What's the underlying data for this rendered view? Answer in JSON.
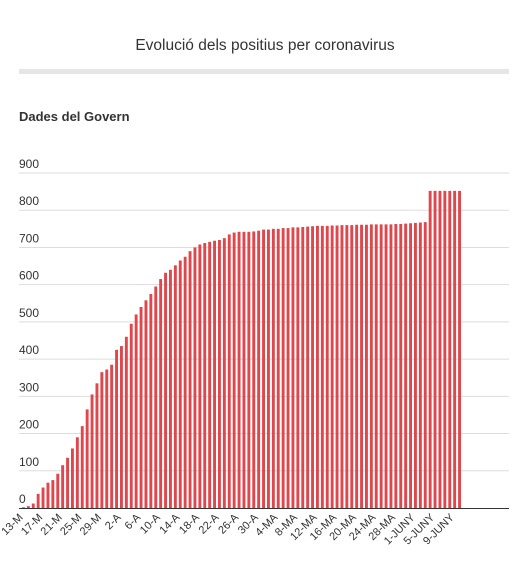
{
  "title": "Evolució dels positius per coronavirus",
  "subtitle": "Dades del Govern",
  "colors": {
    "bar": "#e0474c",
    "grid": "#dddddd",
    "axis": "#333333"
  },
  "chart_data": {
    "type": "bar",
    "title": "Evolució dels positius per coronavirus",
    "subtitle": "Dades del Govern",
    "xlabel": "",
    "ylabel": "",
    "ylim": [
      0,
      900
    ],
    "yticks": [
      0,
      100,
      200,
      300,
      400,
      500,
      600,
      700,
      800,
      900
    ],
    "grid": true,
    "legend": "none",
    "xtick_labels": [
      {
        "index": 0,
        "label": "13-M"
      },
      {
        "index": 4,
        "label": "17-M"
      },
      {
        "index": 8,
        "label": "21-M"
      },
      {
        "index": 12,
        "label": "25-M"
      },
      {
        "index": 16,
        "label": "29-M"
      },
      {
        "index": 20,
        "label": "2-A"
      },
      {
        "index": 24,
        "label": "6-A"
      },
      {
        "index": 28,
        "label": "10-A"
      },
      {
        "index": 32,
        "label": "14-A"
      },
      {
        "index": 36,
        "label": "18-A"
      },
      {
        "index": 40,
        "label": "22-A"
      },
      {
        "index": 44,
        "label": "26-A"
      },
      {
        "index": 48,
        "label": "30-A"
      },
      {
        "index": 52,
        "label": "4-MA"
      },
      {
        "index": 56,
        "label": "8-MA"
      },
      {
        "index": 60,
        "label": "12-MA"
      },
      {
        "index": 64,
        "label": "16-MA"
      },
      {
        "index": 68,
        "label": "20-MA"
      },
      {
        "index": 72,
        "label": "24-MA"
      },
      {
        "index": 76,
        "label": "28-MA"
      },
      {
        "index": 80,
        "label": "1-JUNY"
      },
      {
        "index": 84,
        "label": "5-JUNY"
      },
      {
        "index": 88,
        "label": "9-JUNY"
      }
    ],
    "values": [
      2,
      5,
      12,
      38,
      55,
      68,
      75,
      92,
      115,
      135,
      160,
      190,
      220,
      265,
      305,
      335,
      365,
      372,
      385,
      425,
      435,
      460,
      495,
      520,
      540,
      558,
      575,
      595,
      615,
      632,
      640,
      652,
      665,
      675,
      690,
      700,
      708,
      712,
      715,
      718,
      720,
      725,
      735,
      740,
      742,
      742,
      742,
      743,
      745,
      748,
      748,
      750,
      750,
      752,
      752,
      754,
      754,
      755,
      756,
      757,
      758,
      758,
      758,
      759,
      759,
      760,
      760,
      760,
      761,
      761,
      761,
      762,
      762,
      762,
      762,
      762,
      763,
      763,
      764,
      765,
      766,
      767,
      768,
      852,
      852,
      852,
      852,
      852,
      852,
      852
    ]
  }
}
